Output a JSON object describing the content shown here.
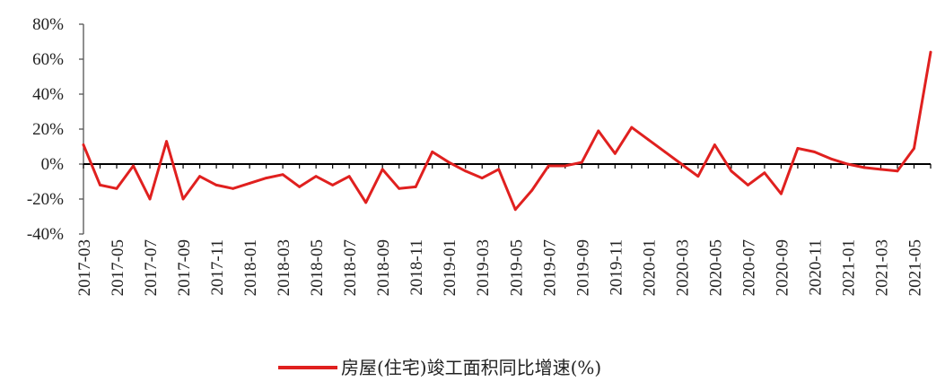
{
  "chart_data": {
    "type": "line",
    "title": "",
    "xlabel": "",
    "ylabel": "",
    "ylim": [
      -40,
      80
    ],
    "y_tick_labels": [
      "80%",
      "60%",
      "40%",
      "20%",
      "0%",
      "-20%",
      "-40%"
    ],
    "y_ticks": [
      80,
      60,
      40,
      20,
      0,
      -20,
      -40
    ],
    "x_tick_labels": [
      "2017-03",
      "2017-05",
      "2017-07",
      "2017-09",
      "2017-11",
      "2018-01",
      "2018-03",
      "2018-05",
      "2018-07",
      "2018-09",
      "2018-11",
      "2019-01",
      "2019-03",
      "2019-05",
      "2019-07",
      "2019-09",
      "2019-11",
      "2020-01",
      "2020-03",
      "2020-05",
      "2020-07",
      "2020-09",
      "2020-11",
      "2021-01",
      "2021-03",
      "2021-05"
    ],
    "x": [
      "2017-03",
      "2017-04",
      "2017-05",
      "2017-06",
      "2017-07",
      "2017-08",
      "2017-09",
      "2017-10",
      "2017-11",
      "2017-12",
      "2018-01",
      "2018-02",
      "2018-03",
      "2018-04",
      "2018-05",
      "2018-06",
      "2018-07",
      "2018-08",
      "2018-09",
      "2018-10",
      "2018-11",
      "2018-12",
      "2019-01",
      "2019-02",
      "2019-03",
      "2019-04",
      "2019-05",
      "2019-06",
      "2019-07",
      "2019-08",
      "2019-09",
      "2019-10",
      "2019-11",
      "2019-12",
      "2020-01",
      "2020-02",
      "2020-03",
      "2020-04",
      "2020-05",
      "2020-06",
      "2020-07",
      "2020-08",
      "2020-09",
      "2020-10",
      "2020-11",
      "2020-12",
      "2021-01",
      "2021-02",
      "2021-03",
      "2021-04",
      "2021-05",
      "2021-06"
    ],
    "series": [
      {
        "name": "房屋(住宅)竣工面积同比增速(%)",
        "color": "#e0201f",
        "values": [
          11,
          -12,
          -14,
          -1,
          -20,
          13,
          -20,
          -7,
          -12,
          -14,
          -11,
          -8,
          -6,
          -13,
          -7,
          -12,
          -7,
          -22,
          -3,
          -14,
          -13,
          7,
          1,
          -4,
          -8,
          -3,
          -26,
          -15,
          -1,
          -1,
          1,
          19,
          6,
          21,
          14,
          7,
          0,
          -7,
          11,
          -4,
          -12,
          -5,
          -17,
          9,
          7,
          3,
          0,
          -2,
          -3,
          -4,
          9,
          64
        ]
      }
    ],
    "zero_line": true,
    "grid": false,
    "legend_position": "bottom-center"
  }
}
